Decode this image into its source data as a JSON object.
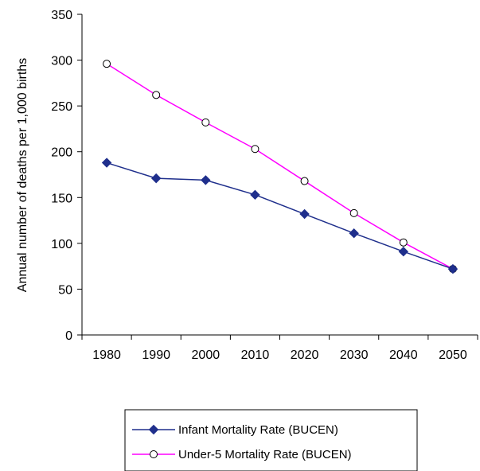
{
  "chart_data": {
    "type": "line",
    "title": "",
    "xlabel": "",
    "ylabel": "Annual number of deaths per 1,000 births",
    "categories": [
      "1980",
      "1990",
      "2000",
      "2010",
      "2020",
      "2030",
      "2040",
      "2050"
    ],
    "ylim": [
      0,
      350
    ],
    "yticks": [
      "0",
      "50",
      "100",
      "150",
      "200",
      "250",
      "300",
      "350"
    ],
    "grid": false,
    "legend_position": "bottom",
    "series": [
      {
        "name": "Infant Mortality Rate (BUCEN)",
        "values": [
          188,
          171,
          169,
          153,
          132,
          111,
          91,
          72
        ],
        "color": "#1f2f8c",
        "marker": "filled-diamond"
      },
      {
        "name": "Under-5 Mortality Rate (BUCEN)",
        "values": [
          296,
          262,
          232,
          203,
          168,
          133,
          101,
          72
        ],
        "color": "#ff00ff",
        "marker": "open-circle"
      }
    ]
  }
}
